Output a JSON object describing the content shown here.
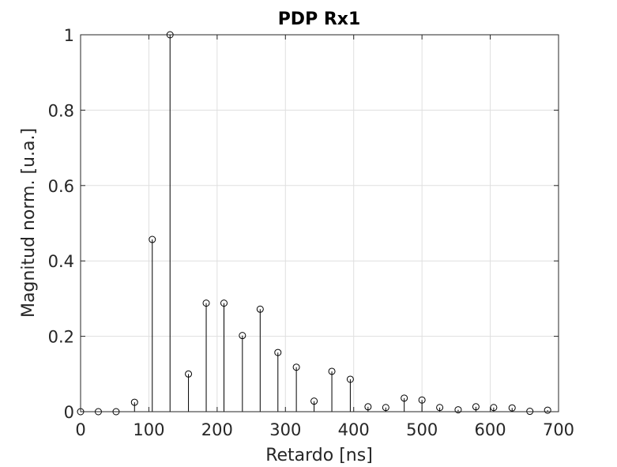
{
  "chart_data": {
    "type": "stem",
    "title": "PDP Rx1",
    "xlabel": "Retardo [ns]",
    "ylabel": "Magnitud norm. [u.a.]",
    "xlim": [
      0,
      700
    ],
    "ylim": [
      0,
      1
    ],
    "xticks": [
      0,
      100,
      200,
      300,
      400,
      500,
      600,
      700
    ],
    "yticks": [
      0,
      0.2,
      0.4,
      0.6,
      0.8,
      1
    ],
    "ytick_labels": [
      "0",
      "0.2",
      "0.4",
      "0.6",
      "0.8",
      "1"
    ],
    "grid": true,
    "series": [
      {
        "color": "#000000",
        "marker": "circle-open",
        "x": [
          0,
          26,
          52,
          79,
          105,
          131,
          158,
          184,
          210,
          237,
          263,
          289,
          316,
          342,
          368,
          395,
          421,
          447,
          474,
          500,
          526,
          553,
          579,
          605,
          632,
          658,
          684
        ],
        "y": [
          0,
          0,
          0,
          0.025,
          0.457,
          1,
          0.1,
          0.288,
          0.288,
          0.202,
          0.272,
          0.157,
          0.118,
          0.028,
          0.107,
          0.086,
          0.013,
          0.011,
          0.036,
          0.031,
          0.011,
          0.005,
          0.013,
          0.011,
          0.01,
          0.001,
          0.004
        ]
      }
    ]
  }
}
